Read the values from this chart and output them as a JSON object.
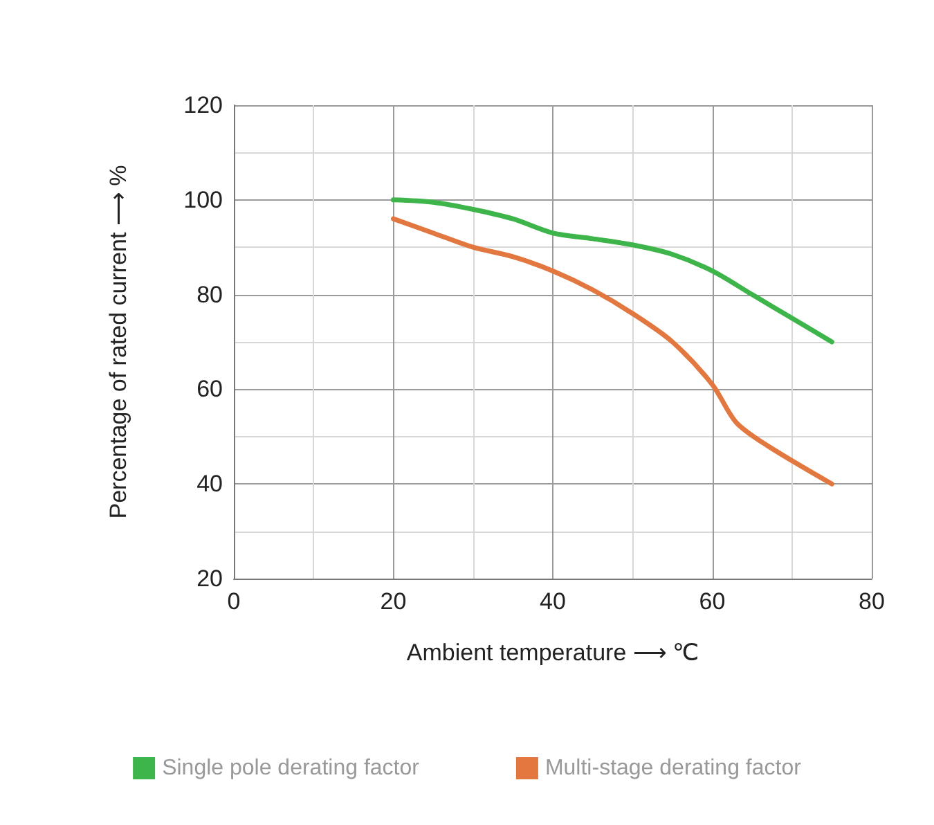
{
  "chart_data": {
    "type": "line",
    "xlabel": "Ambient temperature ⟶ ℃",
    "ylabel": "Percentage of rated current ⟶ %",
    "xlim": [
      0,
      80
    ],
    "xticks": [
      0,
      20,
      40,
      60,
      80
    ],
    "ylim": [
      20,
      120
    ],
    "yticks": [
      20,
      40,
      60,
      80,
      100,
      120
    ],
    "grid": true,
    "legend": "bottom",
    "marker": "none",
    "line_style": "solid",
    "series": [
      {
        "name": "Single pole derating factor",
        "color": "#3db54a",
        "x": [
          20,
          25,
          30,
          35,
          40,
          45,
          50,
          55,
          60,
          65,
          70,
          75
        ],
        "values": [
          100,
          99.5,
          98,
          96,
          93,
          91.8,
          90.5,
          88.5,
          85,
          80,
          75,
          70
        ]
      },
      {
        "name": "Multi-stage derating factor",
        "color": "#e2773f",
        "x": [
          20,
          25,
          30,
          35,
          40,
          45,
          50,
          55,
          60,
          63,
          67,
          75
        ],
        "values": [
          96,
          93,
          90,
          88,
          85,
          81,
          76,
          70,
          61,
          53,
          48,
          40
        ]
      }
    ]
  }
}
